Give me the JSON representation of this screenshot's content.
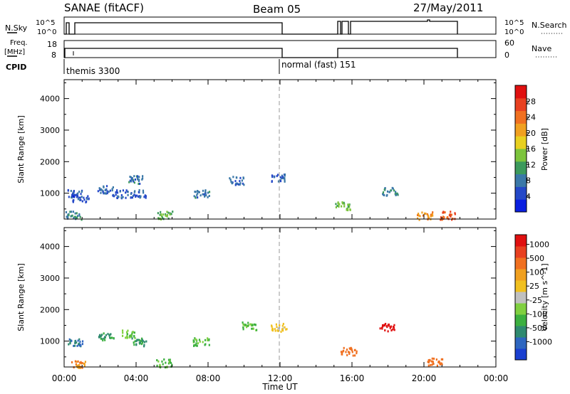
{
  "header": {
    "title": "SANAE (fitACF)",
    "beam": "Beam 05",
    "date": "27/May/2011"
  },
  "status_panels": {
    "nsky_label": "N.Sky",
    "nsearch_label": "N.Search",
    "nsky_ticks": [
      "10^5",
      "10^0"
    ],
    "freq_label": "Freq.",
    "freq_unit": "[MHz]",
    "freq_ticks": [
      "18",
      "8"
    ],
    "nave_label": "Nave",
    "nave_ticks": [
      "60",
      "0"
    ],
    "cpid_label": "CPID",
    "cpid_segments": [
      {
        "label": "themis 3300",
        "start": "00:00",
        "end": "12:00"
      },
      {
        "label": "normal (fast) 151",
        "start": "12:00",
        "end": "24:00"
      }
    ]
  },
  "chart_data": [
    {
      "type": "heatmap",
      "title": "Power",
      "xlabel": "",
      "ylabel": "Slant Range [km]",
      "x_ticks": [
        "00:00",
        "04:00",
        "08:00",
        "12:00",
        "16:00",
        "20:00",
        "00:00"
      ],
      "xlim_hours": [
        0,
        24
      ],
      "y_ticks": [
        1000,
        2000,
        3000,
        4000
      ],
      "ylim": [
        180,
        4600
      ],
      "colorbar": {
        "label": "Power [dB]",
        "ticks": [
          4,
          8,
          12,
          16,
          20,
          24,
          28
        ],
        "range": [
          0,
          32
        ],
        "colors": [
          "#0a1fe0",
          "#2448c8",
          "#3a78a8",
          "#3c9a5c",
          "#7cc43c",
          "#e8d020",
          "#f0a020",
          "#f07020",
          "#e84020",
          "#e01010"
        ]
      },
      "marker": {
        "x_hours": 12,
        "style": "dashed"
      },
      "data_points": [
        {
          "t": 0.6,
          "r": 1000,
          "v": 6
        },
        {
          "t": 0.9,
          "r": 850,
          "v": 5
        },
        {
          "t": 0.5,
          "r": 320,
          "v": 9
        },
        {
          "t": 2.3,
          "r": 1150,
          "v": 7
        },
        {
          "t": 3.1,
          "r": 1000,
          "v": 6
        },
        {
          "t": 3.9,
          "r": 1450,
          "v": 8
        },
        {
          "t": 4.1,
          "r": 1000,
          "v": 6
        },
        {
          "t": 5.6,
          "r": 330,
          "v": 12
        },
        {
          "t": 7.6,
          "r": 1000,
          "v": 8
        },
        {
          "t": 9.6,
          "r": 1420,
          "v": 7
        },
        {
          "t": 11.8,
          "r": 1500,
          "v": 6
        },
        {
          "t": 15.5,
          "r": 620,
          "v": 14
        },
        {
          "t": 18.1,
          "r": 1080,
          "v": 9
        },
        {
          "t": 20.0,
          "r": 300,
          "v": 22
        },
        {
          "t": 21.3,
          "r": 320,
          "v": 26
        }
      ]
    },
    {
      "type": "heatmap",
      "title": "Velocity",
      "xlabel": "Time UT",
      "ylabel": "Slant Range [km]",
      "x_ticks": [
        "00:00",
        "04:00",
        "08:00",
        "12:00",
        "16:00",
        "20:00",
        "00:00"
      ],
      "xlim_hours": [
        0,
        24
      ],
      "y_ticks": [
        1000,
        2000,
        3000,
        4000
      ],
      "ylim": [
        180,
        4600
      ],
      "colorbar": {
        "label": "Velocity [m s^-1]",
        "ticks": [
          "1000",
          "500",
          "100",
          "25",
          "-25",
          "-100",
          "-500",
          "-1000"
        ],
        "colors": [
          "#1a3fd0",
          "#2e66c0",
          "#2f8a70",
          "#3cb040",
          "#80d040",
          "#c0c0c0",
          "#f0c020",
          "#f0a020",
          "#f07020",
          "#e84020",
          "#e01010"
        ]
      },
      "marker": {
        "x_hours": 12,
        "style": "dashed"
      },
      "data_points": [
        {
          "t": 0.6,
          "r": 1000,
          "v": 500
        },
        {
          "t": 0.8,
          "r": 300,
          "v": -100
        },
        {
          "t": 2.3,
          "r": 1150,
          "v": 300
        },
        {
          "t": 3.6,
          "r": 1250,
          "v": 100
        },
        {
          "t": 4.1,
          "r": 1000,
          "v": 300
        },
        {
          "t": 5.5,
          "r": 330,
          "v": 100
        },
        {
          "t": 7.6,
          "r": 1000,
          "v": 100
        },
        {
          "t": 10.3,
          "r": 1500,
          "v": 100
        },
        {
          "t": 11.9,
          "r": 1450,
          "v": 0
        },
        {
          "t": 15.8,
          "r": 700,
          "v": -200
        },
        {
          "t": 17.9,
          "r": 1450,
          "v": -800
        },
        {
          "t": 20.6,
          "r": 350,
          "v": -200
        }
      ]
    }
  ]
}
